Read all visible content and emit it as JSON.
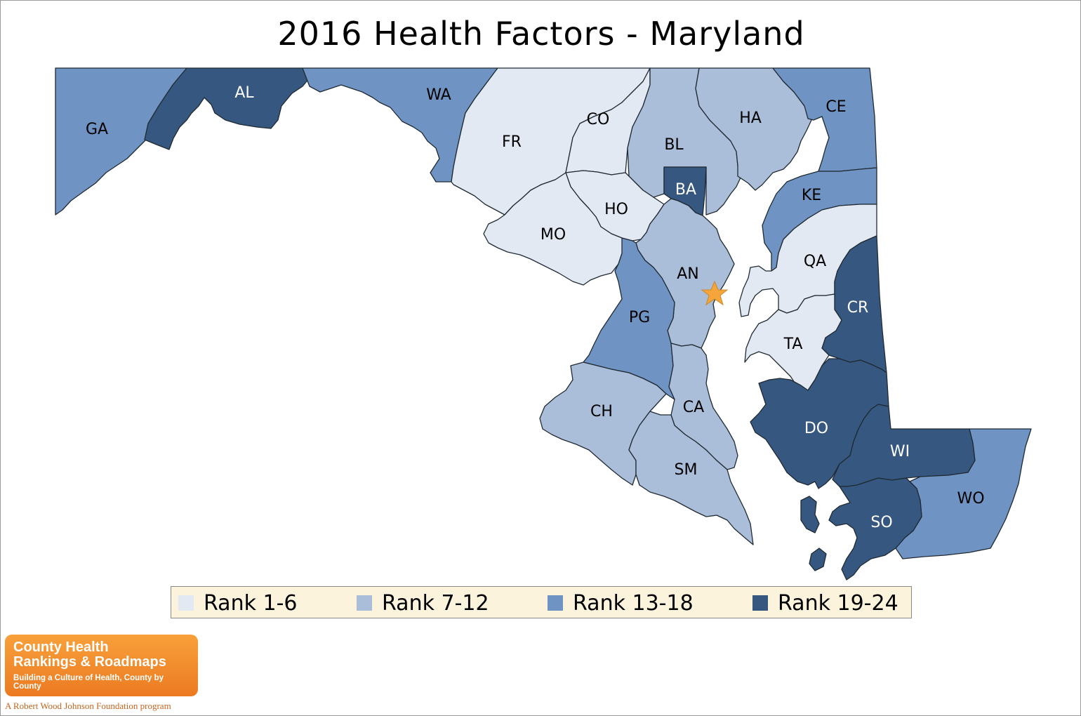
{
  "title": "2016 Health Factors - Maryland",
  "legend": [
    {
      "label": "Rank 1-6",
      "color": "#e3e9f2"
    },
    {
      "label": "Rank 7-12",
      "color": "#aabdd9"
    },
    {
      "label": "Rank 13-18",
      "color": "#6f93c2"
    },
    {
      "label": "Rank 19-24",
      "color": "#36577f"
    }
  ],
  "counties": [
    {
      "abbr": "GA",
      "rank_group": "Rank 13-18"
    },
    {
      "abbr": "AL",
      "rank_group": "Rank 19-24"
    },
    {
      "abbr": "WA",
      "rank_group": "Rank 13-18"
    },
    {
      "abbr": "FR",
      "rank_group": "Rank 1-6"
    },
    {
      "abbr": "CO",
      "rank_group": "Rank 1-6"
    },
    {
      "abbr": "BL",
      "rank_group": "Rank 7-12"
    },
    {
      "abbr": "HA",
      "rank_group": "Rank 7-12"
    },
    {
      "abbr": "CE",
      "rank_group": "Rank 13-18"
    },
    {
      "abbr": "BA",
      "rank_group": "Rank 19-24"
    },
    {
      "abbr": "KE",
      "rank_group": "Rank 13-18"
    },
    {
      "abbr": "HO",
      "rank_group": "Rank 1-6"
    },
    {
      "abbr": "MO",
      "rank_group": "Rank 1-6"
    },
    {
      "abbr": "AN",
      "rank_group": "Rank 7-12"
    },
    {
      "abbr": "QA",
      "rank_group": "Rank 1-6"
    },
    {
      "abbr": "PG",
      "rank_group": "Rank 13-18"
    },
    {
      "abbr": "CR",
      "rank_group": "Rank 19-24"
    },
    {
      "abbr": "TA",
      "rank_group": "Rank 1-6"
    },
    {
      "abbr": "CH",
      "rank_group": "Rank 7-12"
    },
    {
      "abbr": "CA",
      "rank_group": "Rank 7-12"
    },
    {
      "abbr": "DO",
      "rank_group": "Rank 19-24"
    },
    {
      "abbr": "WI",
      "rank_group": "Rank 19-24"
    },
    {
      "abbr": "SM",
      "rank_group": "Rank 7-12"
    },
    {
      "abbr": "WO",
      "rank_group": "Rank 13-18"
    },
    {
      "abbr": "SO",
      "rank_group": "Rank 19-24"
    }
  ],
  "capital_marker": {
    "icon": "star-icon",
    "color": "#f5a53a"
  },
  "logo": {
    "line1": "County Health",
    "line2": "Rankings & Roadmaps",
    "tagline": "Building a Culture of Health, County by County",
    "color": "#ef8529"
  },
  "foundation_text": "A Robert Wood Johnson Foundation program"
}
